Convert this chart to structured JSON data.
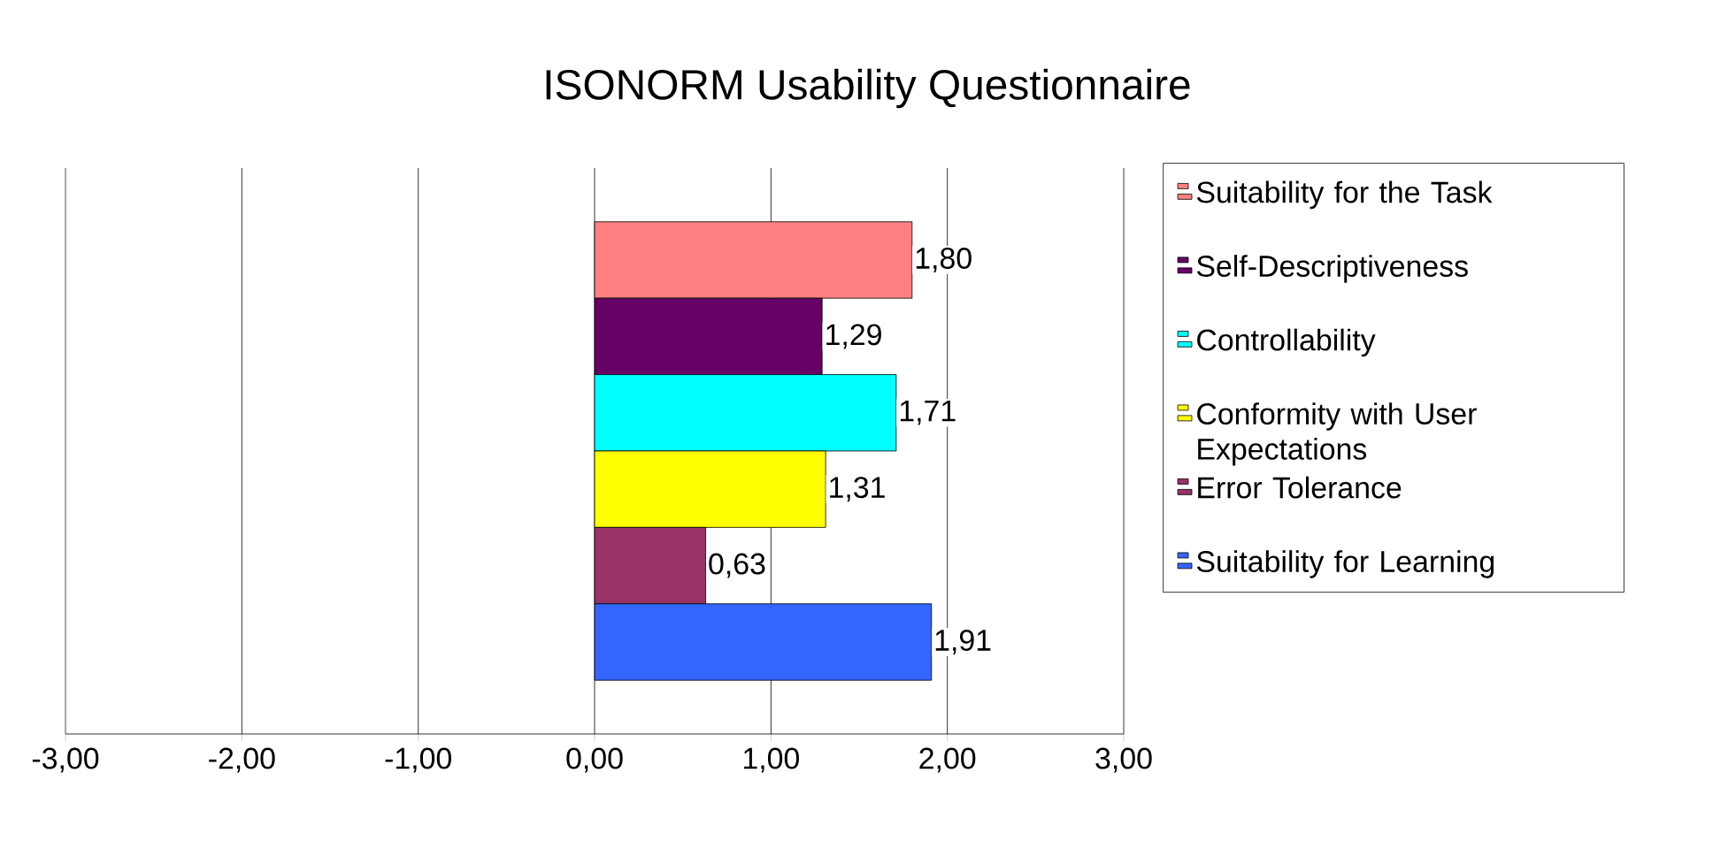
{
  "chart_data": {
    "type": "bar",
    "orientation": "horizontal",
    "title": "ISONORM Usability Questionnaire",
    "categories": [
      null
    ],
    "series": [
      {
        "name": "Suitability for the Task",
        "color": "#ff8080",
        "values": [
          1.8
        ],
        "value_labels": [
          "1,80"
        ]
      },
      {
        "name": "Self-Descriptiveness",
        "color": "#660066",
        "values": [
          1.29
        ],
        "value_labels": [
          "1,29"
        ]
      },
      {
        "name": "Controllability",
        "color": "#00ffff",
        "values": [
          1.71
        ],
        "value_labels": [
          "1,71"
        ]
      },
      {
        "name": "Conformity with User Expectations",
        "color": "#ffff00",
        "values": [
          1.31
        ],
        "value_labels": [
          "1,31"
        ]
      },
      {
        "name": "Error Tolerance",
        "color": "#993366",
        "values": [
          0.63
        ],
        "value_labels": [
          "0,63"
        ]
      },
      {
        "name": "Suitability for Learning",
        "color": "#3366ff",
        "values": [
          1.91
        ],
        "value_labels": [
          "1,91"
        ]
      }
    ],
    "xlim": [
      -3,
      3
    ],
    "xticks": [
      {
        "value": -3,
        "label": "-3,00"
      },
      {
        "value": -2,
        "label": "-2,00"
      },
      {
        "value": -1,
        "label": "-1,00"
      },
      {
        "value": 0,
        "label": "0,00"
      },
      {
        "value": 1,
        "label": "1,00"
      },
      {
        "value": 2,
        "label": "2,00"
      },
      {
        "value": 3,
        "label": "3,00"
      }
    ],
    "grid": "x",
    "legend": "right"
  }
}
